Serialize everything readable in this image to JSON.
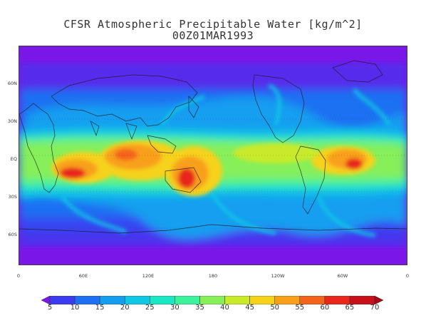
{
  "title": {
    "line1": "CFSR Atmospheric Precipitable Water [kg/m^2]",
    "line2": "00Z01MAR1993"
  },
  "map": {
    "projection": "latlon",
    "lat_labels": [
      "60N",
      "30N",
      "EQ",
      "30S",
      "60S"
    ],
    "lon_labels": [
      "0",
      "60E",
      "120E",
      "180",
      "120W",
      "60W",
      "0"
    ]
  },
  "colorbar": {
    "levels": [
      "5",
      "10",
      "15",
      "20",
      "25",
      "30",
      "35",
      "40",
      "45",
      "50",
      "55",
      "60",
      "65",
      "70"
    ],
    "colors": [
      "#7a18e8",
      "#3b3cf0",
      "#1e6ff2",
      "#139ef0",
      "#10c8e6",
      "#1ae8c4",
      "#3cf29c",
      "#86ef5a",
      "#c8ea2a",
      "#f6d21a",
      "#f8a01a",
      "#f4631a",
      "#e8281a",
      "#c8101a",
      "#a80816"
    ]
  }
}
